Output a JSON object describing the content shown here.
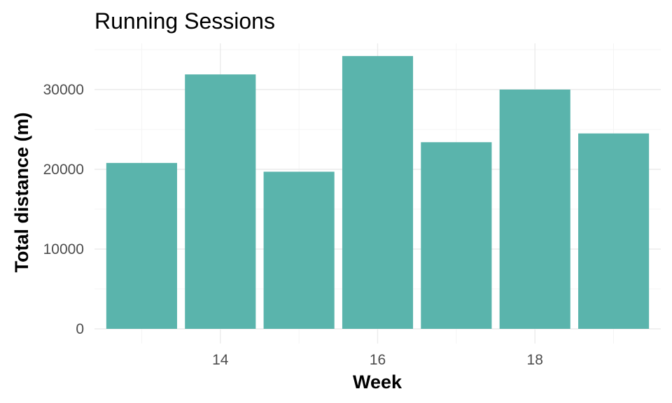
{
  "chart_data": {
    "type": "bar",
    "title": "Running Sessions",
    "xlabel": "Week",
    "ylabel": "Total distance (m)",
    "x": [
      13,
      14,
      15,
      16,
      17,
      18,
      19
    ],
    "values": [
      20800,
      31900,
      19700,
      34200,
      23400,
      30000,
      24500
    ],
    "xlim": [
      12.4,
      19.6
    ],
    "ylim": [
      0,
      36000
    ],
    "x_ticks": [
      14,
      16,
      18
    ],
    "x_tick_labels": [
      "14",
      "16",
      "18"
    ],
    "y_ticks": [
      0,
      10000,
      20000,
      30000
    ],
    "y_tick_labels": [
      "0",
      "10000",
      "20000",
      "30000"
    ],
    "bar_color": "#5ab4ac",
    "grid": true,
    "legend": "none"
  }
}
